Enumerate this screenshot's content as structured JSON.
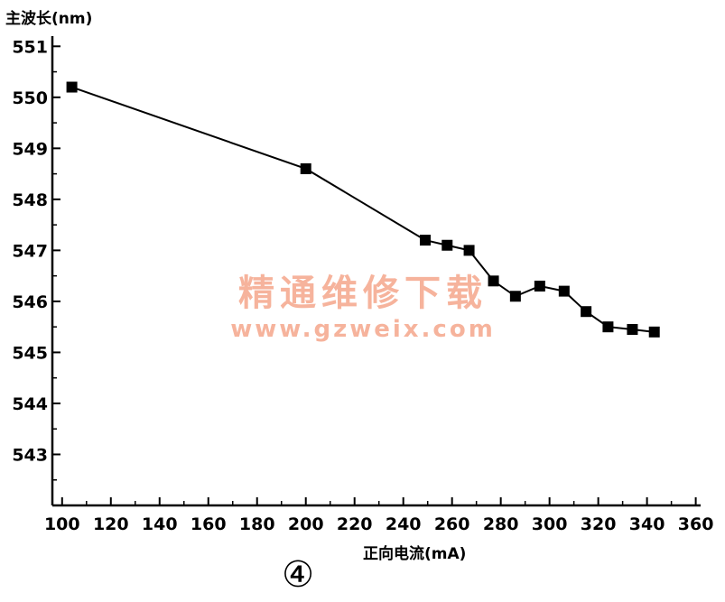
{
  "chart_data": {
    "type": "line",
    "ylabel": "主波长(nm)",
    "xlabel": "正向电流(mA)",
    "panel_label": "④",
    "x_ticks": [
      100,
      120,
      140,
      160,
      180,
      200,
      220,
      240,
      260,
      280,
      300,
      320,
      340,
      360
    ],
    "y_ticks": [
      543,
      544,
      545,
      546,
      547,
      548,
      549,
      550,
      551
    ],
    "xlim": [
      96,
      362
    ],
    "ylim": [
      542,
      551.2
    ],
    "grid": false,
    "series": [
      {
        "marker": "square",
        "color": "#000000",
        "points": [
          {
            "x": 104,
            "y": 550.2
          },
          {
            "x": 200,
            "y": 548.6
          },
          {
            "x": 249,
            "y": 547.2
          },
          {
            "x": 258,
            "y": 547.1
          },
          {
            "x": 267,
            "y": 547.0
          },
          {
            "x": 277,
            "y": 546.4
          },
          {
            "x": 286,
            "y": 546.1
          },
          {
            "x": 296,
            "y": 546.3
          },
          {
            "x": 306,
            "y": 546.2
          },
          {
            "x": 315,
            "y": 545.8
          },
          {
            "x": 324,
            "y": 545.5
          },
          {
            "x": 334,
            "y": 545.45
          },
          {
            "x": 343,
            "y": 545.4
          }
        ]
      }
    ]
  },
  "watermark": {
    "line1": "精通维修下载",
    "line2": "www.gzweix.com",
    "color": "#f6b39c"
  }
}
